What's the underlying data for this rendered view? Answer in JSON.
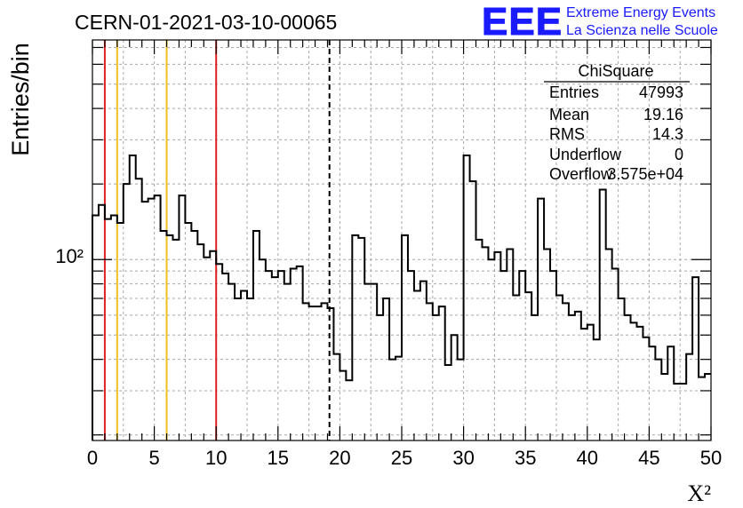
{
  "chart_data": {
    "type": "bar",
    "title": "CERN-01-2021-03-10-00065",
    "xlabel": "X²",
    "ylabel": "Entries/bin",
    "xlim": [
      0,
      50
    ],
    "ylim": [
      19,
      750
    ],
    "log_y": true,
    "grid": true,
    "x_ticks": [
      "0",
      "5",
      "10",
      "15",
      "20",
      "25",
      "30",
      "35",
      "40",
      "45",
      "50"
    ],
    "y_tick_label": "10²",
    "bin_width": 0.5,
    "values": [
      150,
      165,
      145,
      150,
      140,
      200,
      260,
      210,
      170,
      175,
      180,
      130,
      125,
      120,
      180,
      140,
      130,
      115,
      102,
      108,
      96,
      88,
      80,
      70,
      75,
      70,
      130,
      100,
      90,
      85,
      90,
      80,
      92,
      94,
      67,
      65,
      65,
      67,
      64,
      42,
      36,
      33,
      125,
      122,
      80,
      80,
      60,
      70,
      40,
      41,
      125,
      90,
      75,
      82,
      67,
      60,
      65,
      38,
      50,
      40,
      260,
      205,
      120,
      112,
      100,
      107,
      90,
      110,
      72,
      90,
      74,
      60,
      175,
      110,
      90,
      72,
      67,
      60,
      62,
      53,
      55,
      48,
      190,
      110,
      92,
      70,
      60,
      56,
      54,
      49,
      45,
      40,
      35,
      45,
      32,
      32,
      42,
      85,
      34,
      35
    ],
    "vertical_lines": [
      {
        "x": 1,
        "color": "#e02020",
        "style": "solid"
      },
      {
        "x": 2,
        "color": "#f0c020",
        "style": "solid"
      },
      {
        "x": 6,
        "color": "#f0c020",
        "style": "solid"
      },
      {
        "x": 10,
        "color": "#e02020",
        "style": "solid"
      },
      {
        "x": 19.16,
        "color": "#000000",
        "style": "dashed"
      }
    ],
    "line_color": "#000000",
    "stats_box": {
      "title": "ChiSquare",
      "rows": [
        {
          "label": "Entries",
          "value": "47993"
        },
        {
          "label": "Mean",
          "value": "19.16"
        },
        {
          "label": "RMS",
          "value": "14.3"
        },
        {
          "label": "Underflow",
          "value": "0"
        },
        {
          "label": "Overflow",
          "value": "3.575e+04"
        }
      ]
    }
  },
  "logo": {
    "mark": "EEE",
    "line1": "Extreme Energy Events",
    "line2": "La Scienza nelle Scuole",
    "color": "#1a1aff"
  }
}
